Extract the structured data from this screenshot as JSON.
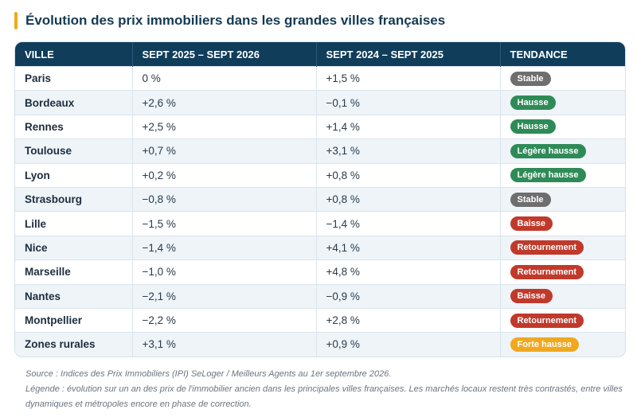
{
  "title": "Évolution des prix immobiliers dans les grandes villes françaises",
  "headers": [
    "VILLE",
    "SEPT 2025 – SEPT 2026",
    "SEPT 2024 – SEPT 2025",
    "TENDANCE"
  ],
  "colors": {
    "title_accent": "#f0a820",
    "header_bg": "#0f3d5a",
    "stable": "#6e6e6e",
    "hausse": "#2e8b57",
    "baisse": "#c0392b",
    "forte_hausse": "#f0a820"
  },
  "rows": [
    {
      "city": "Paris",
      "y2026": "0 %",
      "y2025": "+1,5 %",
      "trend": "Stable",
      "trend_color": "#6e6e6e"
    },
    {
      "city": "Bordeaux",
      "y2026": "+2,6 %",
      "y2025": "−0,1 %",
      "trend": "Hausse",
      "trend_color": "#2e8b57"
    },
    {
      "city": "Rennes",
      "y2026": "+2,5 %",
      "y2025": "+1,4 %",
      "trend": "Hausse",
      "trend_color": "#2e8b57"
    },
    {
      "city": "Toulouse",
      "y2026": "+0,7 %",
      "y2025": "+3,1 %",
      "trend": "Légère hausse",
      "trend_color": "#2e8b57"
    },
    {
      "city": "Lyon",
      "y2026": "+0,2 %",
      "y2025": "+0,8 %",
      "trend": "Légère hausse",
      "trend_color": "#2e8b57"
    },
    {
      "city": "Strasbourg",
      "y2026": "−0,8 %",
      "y2025": "+0,8 %",
      "trend": "Stable",
      "trend_color": "#6e6e6e"
    },
    {
      "city": "Lille",
      "y2026": "−1,5 %",
      "y2025": "−1,4 %",
      "trend": "Baisse",
      "trend_color": "#c0392b"
    },
    {
      "city": "Nice",
      "y2026": "−1,4 %",
      "y2025": "+4,1 %",
      "trend": "Retournement",
      "trend_color": "#c0392b"
    },
    {
      "city": "Marseille",
      "y2026": "−1,0 %",
      "y2025": "+4,8 %",
      "trend": "Retournement",
      "trend_color": "#c0392b"
    },
    {
      "city": "Nantes",
      "y2026": "−2,1 %",
      "y2025": "−0,9 %",
      "trend": "Baisse",
      "trend_color": "#c0392b"
    },
    {
      "city": "Montpellier",
      "y2026": "−2,2 %",
      "y2025": "+2,8 %",
      "trend": "Retournement",
      "trend_color": "#c0392b"
    },
    {
      "city": "Zones rurales",
      "y2026": "+3,1 %",
      "y2025": "+0,9 %",
      "trend": "Forte hausse",
      "trend_color": "#f0a820"
    }
  ],
  "source": "Source : Indices des Prix Immobiliers (IPI) SeLoger / Meilleurs Agents au 1er septembre 2026.",
  "legend": "Légende : évolution sur un an des prix de l'immobilier ancien dans les principales villes françaises. Les marchés locaux restent très contrastés, entre villes dynamiques et métropoles encore en phase de correction."
}
